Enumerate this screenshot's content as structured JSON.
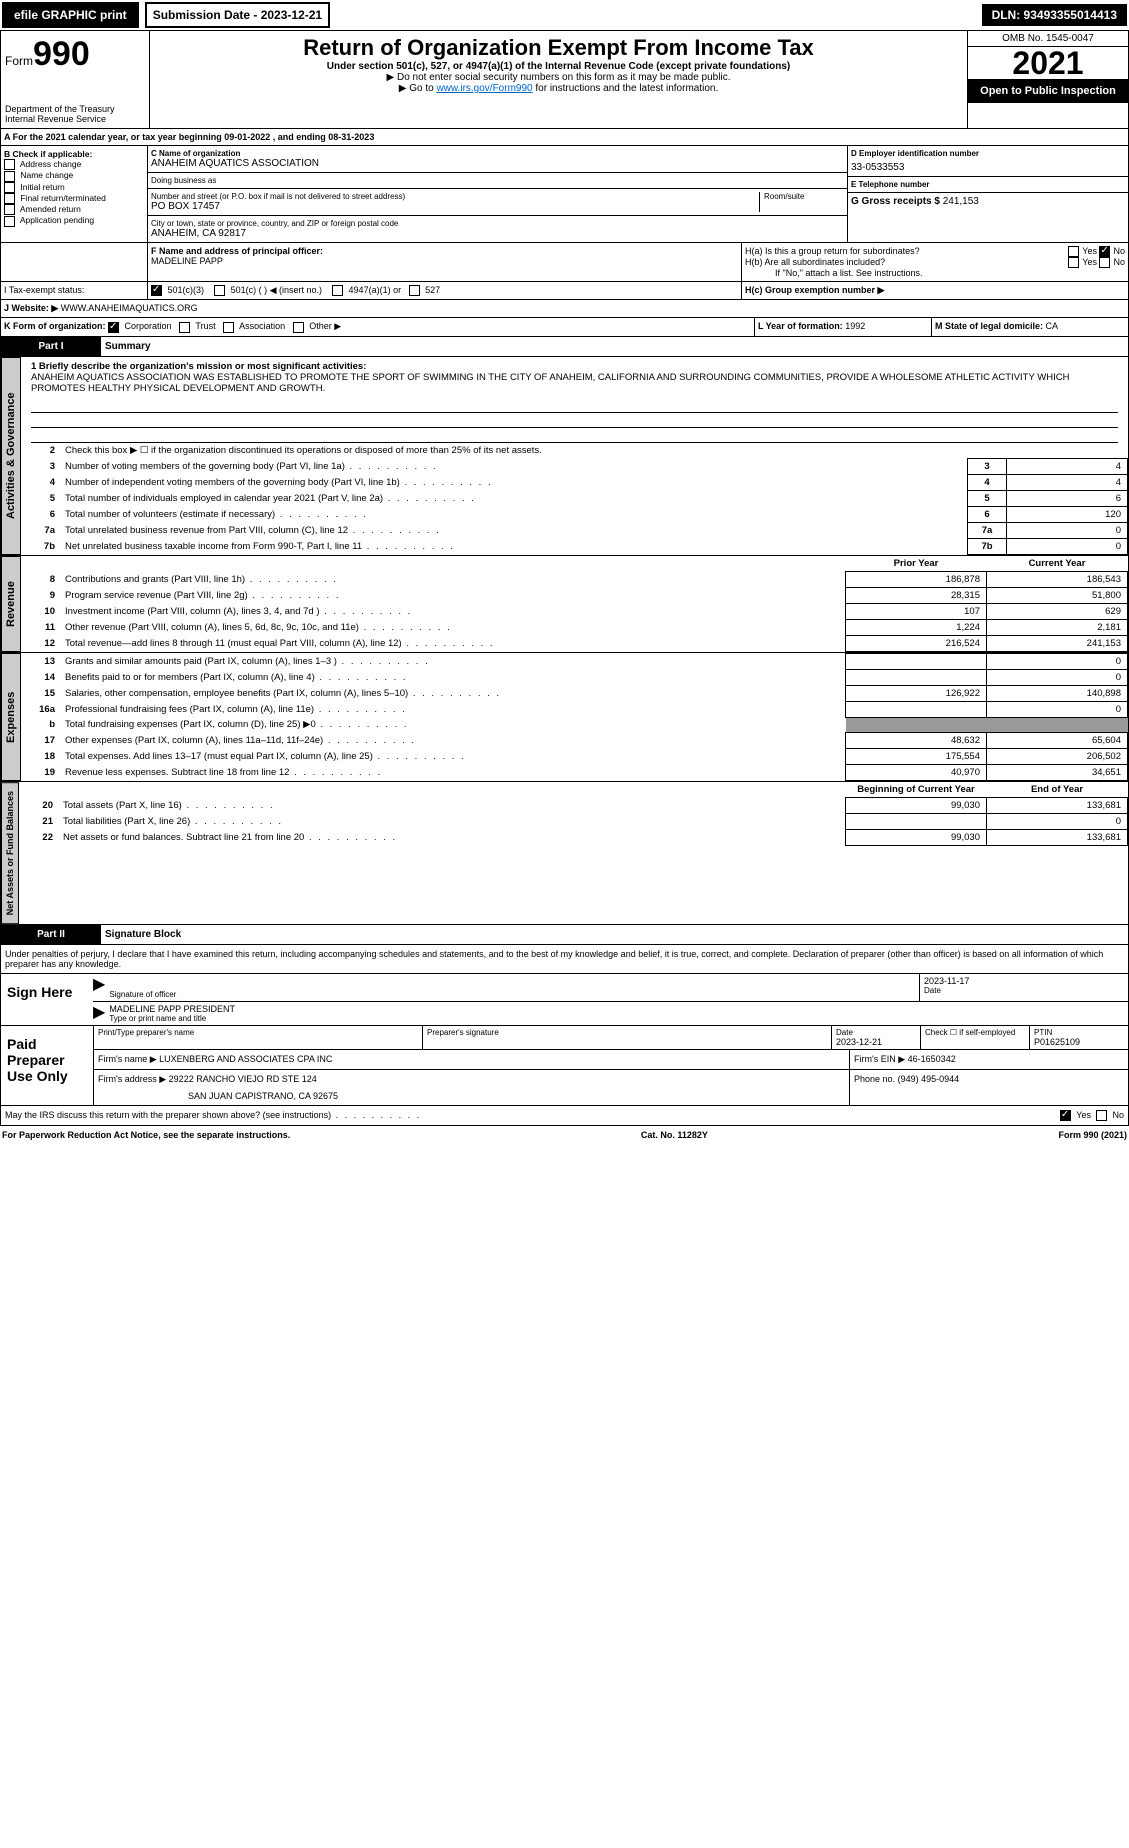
{
  "topbar": {
    "efile": "efile GRAPHIC print",
    "submission": "Submission Date - 2023-12-21",
    "dln": "DLN: 93493355014413"
  },
  "header": {
    "form_prefix": "Form",
    "form_number": "990",
    "title": "Return of Organization Exempt From Income Tax",
    "subtitle": "Under section 501(c), 527, or 4947(a)(1) of the Internal Revenue Code (except private foundations)",
    "ssn_note": "▶ Do not enter social security numbers on this form as it may be made public.",
    "goto_prefix": "▶ Go to ",
    "goto_link": "www.irs.gov/Form990",
    "goto_suffix": " for instructions and the latest information.",
    "dept": "Department of the Treasury",
    "irs": "Internal Revenue Service",
    "omb": "OMB No. 1545-0047",
    "year": "2021",
    "open": "Open to Public Inspection"
  },
  "row_a": {
    "text_a": "A For the 2021 calendar year, or tax year beginning 09-01-2022   , and ending 08-31-2023",
    "b_label": "B Check if applicable:",
    "b_items": [
      "Address change",
      "Name change",
      "Initial return",
      "Final return/terminated",
      "Amended return",
      "Application pending"
    ],
    "c_name_lbl": "C Name of organization",
    "c_name": "ANAHEIM AQUATICS ASSOCIATION",
    "dba_lbl": "Doing business as",
    "dba": "",
    "street_lbl": "Number and street (or P.O. box if mail is not delivered to street address)",
    "room_lbl": "Room/suite",
    "street": "PO BOX 17457",
    "city_lbl": "City or town, state or province, country, and ZIP or foreign postal code",
    "city": "ANAHEIM, CA  92817",
    "d_lbl": "D Employer identification number",
    "d_val": "33-0533553",
    "e_lbl": "E Telephone number",
    "e_val": "",
    "g_lbl": "G Gross receipts $",
    "g_val": "241,153",
    "f_lbl": "F  Name and address of principal officer:",
    "f_val": "MADELINE PAPP",
    "h1a": "H(a)  Is this a group return for subordinates?",
    "h1b": "H(b)  Are all subordinates included?",
    "h_no_attach": "If \"No,\" attach a list. See instructions.",
    "hc": "H(c)  Group exemption number ▶",
    "yes": "Yes",
    "no": "No"
  },
  "row_i": {
    "i_label": "I    Tax-exempt status:",
    "c501c3": "501(c)(3)",
    "c501c": "501(c) (   ) ◀ (insert no.)",
    "c4947": "4947(a)(1) or",
    "c527": "527",
    "j_label": "J    Website: ▶",
    "j_val": "WWW.ANAHEIMAQUATICS.ORG"
  },
  "row_k": {
    "k_label": "K Form of organization:",
    "corp": "Corporation",
    "trust": "Trust",
    "assoc": "Association",
    "other": "Other ▶",
    "l_label": "L Year of formation:",
    "l_val": "1992",
    "m_label": "M State of legal domicile:",
    "m_val": "CA"
  },
  "part1": {
    "label": "Part I",
    "title": "Summary",
    "tab_gov": "Activities & Governance",
    "tab_rev": "Revenue",
    "tab_exp": "Expenses",
    "tab_net": "Net Assets or Fund Balances",
    "line1": "1  Briefly describe the organization's mission or most significant activities:",
    "mission": "ANAHEIM AQUATICS ASSOCIATION WAS ESTABLISHED TO PROMOTE THE SPORT OF SWIMMING IN THE CITY OF ANAHEIM, CALIFORNIA AND SURROUNDING COMMUNITIES, PROVIDE A WHOLESOME ATHLETIC ACTIVITY WHICH PROMOTES HEALTHY PHYSICAL DEVELOPMENT AND GROWTH.",
    "line2": "Check this box ▶ ☐  if the organization discontinued its operations or disposed of more than 25% of its net assets.",
    "prior_year": "Prior Year",
    "current_year": "Current Year",
    "begin_year": "Beginning of Current Year",
    "end_year": "End of Year",
    "rows_gov": [
      {
        "n": "2",
        "desc": "Check this box ▶ if the organization discontinued its operations or disposed of more than 25% of its net assets."
      },
      {
        "n": "3",
        "desc": "Number of voting members of the governing body (Part VI, line 1a)",
        "box": "3",
        "v": "4"
      },
      {
        "n": "4",
        "desc": "Number of independent voting members of the governing body (Part VI, line 1b)",
        "box": "4",
        "v": "4"
      },
      {
        "n": "5",
        "desc": "Total number of individuals employed in calendar year 2021 (Part V, line 2a)",
        "box": "5",
        "v": "6"
      },
      {
        "n": "6",
        "desc": "Total number of volunteers (estimate if necessary)",
        "box": "6",
        "v": "120"
      },
      {
        "n": "7a",
        "desc": "Total unrelated business revenue from Part VIII, column (C), line 12",
        "box": "7a",
        "v": "0"
      },
      {
        "n": "7b",
        "desc": "Net unrelated business taxable income from Form 990-T, Part I, line 11",
        "box": "7b",
        "v": "0"
      }
    ],
    "rows_rev": [
      {
        "n": "8",
        "desc": "Contributions and grants (Part VIII, line 1h)",
        "p": "186,878",
        "c": "186,543"
      },
      {
        "n": "9",
        "desc": "Program service revenue (Part VIII, line 2g)",
        "p": "28,315",
        "c": "51,800"
      },
      {
        "n": "10",
        "desc": "Investment income (Part VIII, column (A), lines 3, 4, and 7d )",
        "p": "107",
        "c": "629"
      },
      {
        "n": "11",
        "desc": "Other revenue (Part VIII, column (A), lines 5, 6d, 8c, 9c, 10c, and 11e)",
        "p": "1,224",
        "c": "2,181"
      },
      {
        "n": "12",
        "desc": "Total revenue—add lines 8 through 11 (must equal Part VIII, column (A), line 12)",
        "p": "216,524",
        "c": "241,153"
      }
    ],
    "rows_exp": [
      {
        "n": "13",
        "desc": "Grants and similar amounts paid (Part IX, column (A), lines 1–3 )",
        "p": "",
        "c": "0"
      },
      {
        "n": "14",
        "desc": "Benefits paid to or for members (Part IX, column (A), line 4)",
        "p": "",
        "c": "0"
      },
      {
        "n": "15",
        "desc": "Salaries, other compensation, employee benefits (Part IX, column (A), lines 5–10)",
        "p": "126,922",
        "c": "140,898"
      },
      {
        "n": "16a",
        "desc": "Professional fundraising fees (Part IX, column (A), line 11e)",
        "p": "",
        "c": "0"
      },
      {
        "n": "b",
        "desc": "Total fundraising expenses (Part IX, column (D), line 25) ▶0",
        "p": "grey",
        "c": "grey"
      },
      {
        "n": "17",
        "desc": "Other expenses (Part IX, column (A), lines 11a–11d, 11f–24e)",
        "p": "48,632",
        "c": "65,604"
      },
      {
        "n": "18",
        "desc": "Total expenses. Add lines 13–17 (must equal Part IX, column (A), line 25)",
        "p": "175,554",
        "c": "206,502"
      },
      {
        "n": "19",
        "desc": "Revenue less expenses. Subtract line 18 from line 12",
        "p": "40,970",
        "c": "34,651"
      }
    ],
    "rows_net": [
      {
        "n": "20",
        "desc": "Total assets (Part X, line 16)",
        "p": "99,030",
        "c": "133,681"
      },
      {
        "n": "21",
        "desc": "Total liabilities (Part X, line 26)",
        "p": "",
        "c": "0"
      },
      {
        "n": "22",
        "desc": "Net assets or fund balances. Subtract line 21 from line 20",
        "p": "99,030",
        "c": "133,681"
      }
    ]
  },
  "part2": {
    "label": "Part II",
    "title": "Signature Block",
    "penalty": "Under penalties of perjury, I declare that I have examined this return, including accompanying schedules and statements, and to the best of my knowledge and belief, it is true, correct, and complete. Declaration of preparer (other than officer) is based on all information of which preparer has any knowledge.",
    "sign_here": "Sign Here",
    "sig_officer": "Signature of officer",
    "sig_date": "2023-11-17",
    "date_lbl": "Date",
    "officer_name": "MADELINE PAPP PRESIDENT",
    "type_name": "Type or print name and title",
    "paid": "Paid Preparer Use Only",
    "prep_name_lbl": "Print/Type preparer's name",
    "prep_sig_lbl": "Preparer's signature",
    "prep_date_lbl": "Date",
    "prep_date": "2023-12-21",
    "check_lbl": "Check ☐ if self-employed",
    "ptin_lbl": "PTIN",
    "ptin": "P01625109",
    "firm_name_lbl": "Firm's name    ▶",
    "firm_name": "LUXENBERG AND ASSOCIATES CPA INC",
    "firm_ein_lbl": "Firm's EIN ▶",
    "firm_ein": "46-1650342",
    "firm_addr_lbl": "Firm's address ▶",
    "firm_addr1": "29222 RANCHO VIEJO RD STE 124",
    "firm_addr2": "SAN JUAN CAPISTRANO, CA  92675",
    "phone_lbl": "Phone no.",
    "phone": "(949) 495-0944",
    "may_irs": "May the IRS discuss this return with the preparer shown above? (see instructions)"
  },
  "footer": {
    "left": "For Paperwork Reduction Act Notice, see the separate instructions.",
    "center": "Cat. No. 11282Y",
    "right": "Form 990 (2021)"
  }
}
